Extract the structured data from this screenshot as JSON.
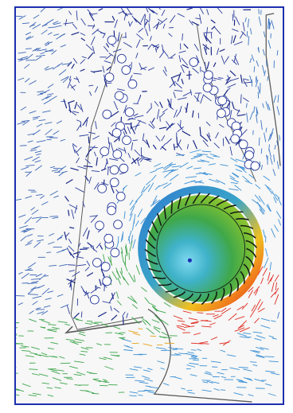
{
  "figure": {
    "subject": "cfd-velocity-vector-field",
    "colors": {
      "frame_border": "#1d2fb0",
      "background": "#f6f7f6",
      "slow_flow": "#2a3a9c",
      "medium_flow": "#3b8fd6",
      "fast_flow": "#3ca44a",
      "peak_flow": "#e0281f"
    },
    "icons": [
      "tube-circle-icon",
      "impeller-blade-icon",
      "hub-point-icon"
    ]
  }
}
